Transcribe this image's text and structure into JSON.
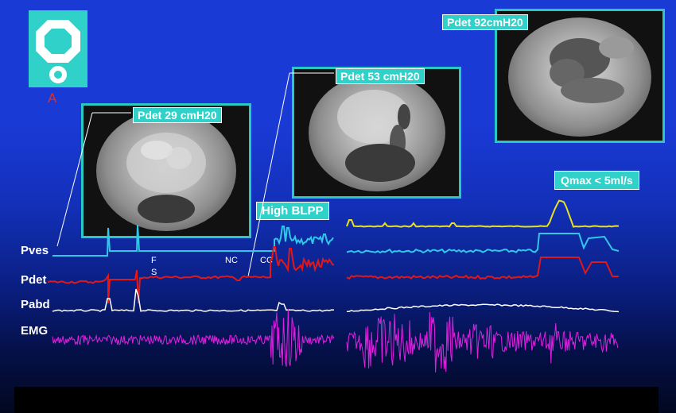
{
  "logo": {
    "letter": "A",
    "icon": "octagon-ring-icon"
  },
  "panels": [
    {
      "id": "p1",
      "label": "Pdet 29 cmH20"
    },
    {
      "id": "p2",
      "label": "Pdet 53 cmH20"
    },
    {
      "id": "p3",
      "label": "Pdet 92cmH20"
    }
  ],
  "callouts": {
    "blpp": "High BLPP",
    "qmax": "Qmax < 5ml/s"
  },
  "channels": [
    "Pves",
    "Pdet",
    "Pabd",
    "EMG"
  ],
  "events": {
    "f": "F",
    "s": "S",
    "nc": "NC",
    "cc": "CC"
  },
  "colors": {
    "pves": "#30c8e8",
    "pdet": "#e01818",
    "pabd": "#ffffff",
    "emg": "#e020e0",
    "flow": "#e8e020",
    "accent": "#2fd1c9"
  }
}
